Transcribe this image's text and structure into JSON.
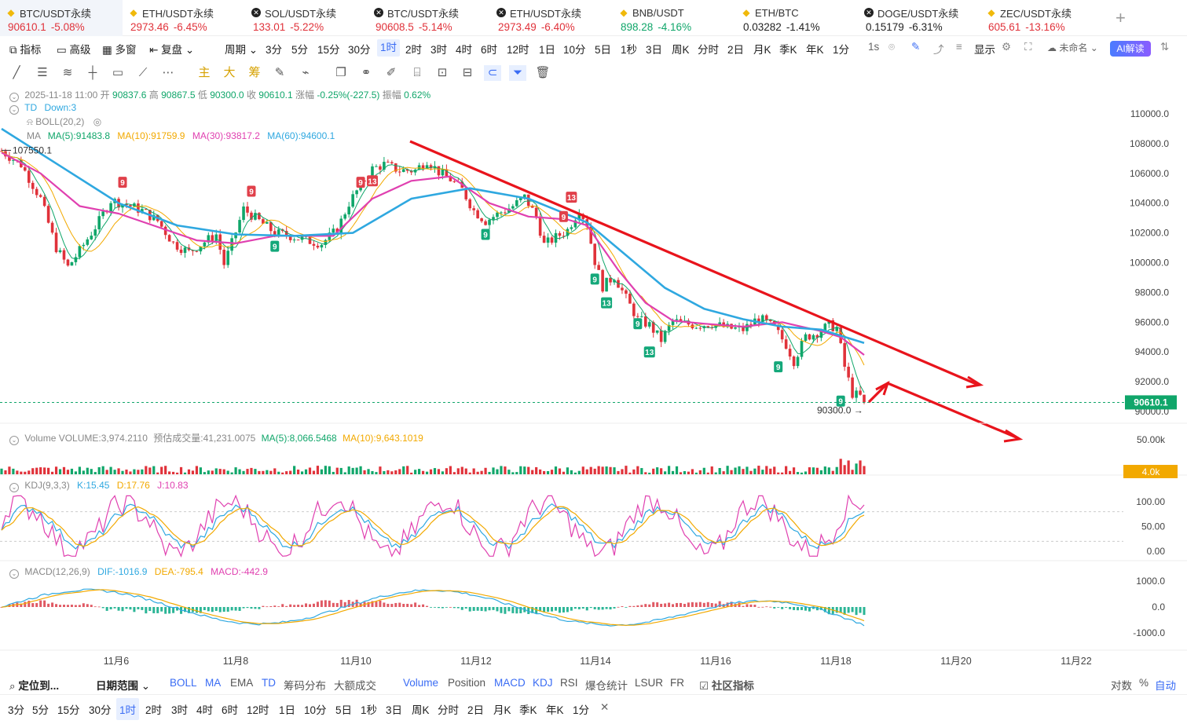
{
  "tickers": [
    {
      "name": "BTC/USDT永续",
      "icon": "binance-icon",
      "price": "90610.1",
      "change": "-5.08%",
      "active": true
    },
    {
      "name": "ETH/USDT永续",
      "icon": "binance-icon",
      "price": "2973.46",
      "change": "-6.45%"
    },
    {
      "name": "SOL/USDT永续",
      "icon": "okx-icon",
      "price": "133.01",
      "change": "-5.22%"
    },
    {
      "name": "BTC/USDT永续",
      "icon": "okx-icon",
      "price": "90608.5",
      "change": "-5.14%"
    },
    {
      "name": "ETH/USDT永续",
      "icon": "okx-icon",
      "price": "2973.49",
      "change": "-6.40%"
    },
    {
      "name": "BNB/USDT",
      "icon": "binance-icon",
      "price": "898.28",
      "change": "-4.16%"
    },
    {
      "name": "ETH/BTC",
      "icon": "binance-icon",
      "price": "0.03282",
      "change": "-1.41%"
    },
    {
      "name": "DOGE/USDT永续",
      "icon": "okx-icon",
      "price": "0.15179",
      "change": "-6.31%"
    },
    {
      "name": "ZEC/USDT永续",
      "icon": "binance-icon",
      "price": "605.61",
      "change": "-13.16%"
    }
  ],
  "toolbar": {
    "indicators": "指标",
    "advanced": "高级",
    "multi_window": "多窗",
    "replay": "复盘",
    "period": "周期",
    "intervals": [
      "3分",
      "5分",
      "15分",
      "30分",
      "1时",
      "2时",
      "3时",
      "4时",
      "6时",
      "12时",
      "1日",
      "10分",
      "5日",
      "1秒",
      "3日",
      "周K",
      "分时",
      "2日",
      "月K",
      "季K",
      "年K",
      "1分"
    ],
    "selected_interval": "1时",
    "seconds": "1s",
    "display": "显示",
    "unnamed": "未命名",
    "ai": "AI解读"
  },
  "drawbar": {
    "main": "主",
    "big": "大",
    "chips": "筹"
  },
  "legend": {
    "ohlc": {
      "date": "2025-11-18 11:00",
      "open_label": "开",
      "open": "90837.6",
      "high_label": "高",
      "high": "90867.5",
      "low_label": "低",
      "low": "90300.0",
      "close_label": "收",
      "close": "90610.1",
      "amp_label": "涨幅",
      "amp": "-0.25%(-227.5)",
      "vib_label": "振幅",
      "vib": "0.62%"
    },
    "td": {
      "name": "TD",
      "value": "Down:3"
    },
    "boll": {
      "name": "BOLL(20,2)"
    },
    "ma": {
      "name": "MA",
      "ma5": "MA(5):91483.8",
      "ma10": "MA(10):91759.9",
      "ma30": "MA(30):93817.2",
      "ma60": "MA(60):94600.1"
    },
    "volume": {
      "name": "Volume",
      "vol": "VOLUME:3,974.2110",
      "est": "预估成交量:41,231.0075",
      "ma5": "MA(5):8,066.5468",
      "ma10": "MA(10):9,643.1019"
    },
    "kdj": {
      "name": "KDJ(9,3,3)",
      "k": "K:15.45",
      "d": "D:17.76",
      "j": "J:10.83"
    },
    "macd": {
      "name": "MACD(12,26,9)",
      "dif": "DIF:-1016.9",
      "dea": "DEA:-795.4",
      "macd": "MACD:-442.9"
    }
  },
  "chart_data": {
    "type": "candlestick",
    "symbol": "BTC/USDT永续",
    "interval": "1时",
    "current_price": 90610.1,
    "high_marker": "107550.1",
    "low_marker": "90300.0",
    "ylim": [
      89500,
      111000
    ],
    "y_ticks": [
      "110000.0",
      "108000.0",
      "106000.0",
      "104000.0",
      "102000.0",
      "100000.0",
      "98000.0",
      "96000.0",
      "94000.0",
      "92000.0",
      "90000.0"
    ],
    "x_ticks": [
      "11月6",
      "11月8",
      "11月10",
      "11月12",
      "11月14",
      "11月16",
      "11月18",
      "11月20",
      "11月22"
    ],
    "close_path": [
      [
        0,
        107500
      ],
      [
        5,
        106600
      ],
      [
        10,
        104300
      ],
      [
        14,
        101000
      ],
      [
        17,
        99700
      ],
      [
        20,
        100800
      ],
      [
        25,
        102800
      ],
      [
        28,
        104200
      ],
      [
        32,
        103900
      ],
      [
        36,
        103500
      ],
      [
        40,
        102800
      ],
      [
        44,
        101300
      ],
      [
        48,
        100700
      ],
      [
        52,
        101400
      ],
      [
        55,
        101900
      ],
      [
        57,
        99900
      ],
      [
        59,
        101300
      ],
      [
        62,
        103600
      ],
      [
        66,
        102800
      ],
      [
        70,
        102000
      ],
      [
        74,
        101800
      ],
      [
        78,
        101500
      ],
      [
        82,
        101300
      ],
      [
        86,
        102200
      ],
      [
        89,
        104000
      ],
      [
        92,
        105200
      ],
      [
        95,
        106300
      ],
      [
        98,
        106600
      ],
      [
        102,
        106200
      ],
      [
        106,
        106200
      ],
      [
        109,
        106900
      ],
      [
        112,
        106100
      ],
      [
        115,
        105600
      ],
      [
        118,
        104900
      ],
      [
        121,
        103500
      ],
      [
        124,
        102800
      ],
      [
        128,
        103400
      ],
      [
        131,
        103800
      ],
      [
        134,
        104400
      ],
      [
        137,
        103100
      ],
      [
        139,
        101200
      ],
      [
        142,
        101700
      ],
      [
        145,
        102200
      ],
      [
        148,
        103600
      ],
      [
        150,
        102600
      ],
      [
        152,
        100100
      ],
      [
        154,
        98400
      ],
      [
        157,
        99100
      ],
      [
        160,
        97600
      ],
      [
        163,
        96200
      ],
      [
        166,
        95800
      ],
      [
        169,
        94800
      ],
      [
        172,
        96100
      ],
      [
        175,
        95900
      ],
      [
        178,
        95800
      ],
      [
        182,
        95900
      ],
      [
        186,
        95600
      ],
      [
        190,
        95500
      ],
      [
        194,
        96300
      ],
      [
        198,
        95600
      ],
      [
        201,
        94500
      ],
      [
        203,
        93400
      ],
      [
        206,
        95000
      ],
      [
        209,
        95300
      ],
      [
        212,
        95800
      ],
      [
        214,
        95600
      ],
      [
        216,
        93000
      ],
      [
        218,
        91200
      ],
      [
        220,
        91000
      ],
      [
        221,
        90610
      ]
    ],
    "ma_blue": [
      [
        0,
        109000
      ],
      [
        15,
        106500
      ],
      [
        30,
        104000
      ],
      [
        45,
        102500
      ],
      [
        60,
        101900
      ],
      [
        75,
        101800
      ],
      [
        90,
        102000
      ],
      [
        105,
        104300
      ],
      [
        120,
        105000
      ],
      [
        135,
        104300
      ],
      [
        150,
        102700
      ],
      [
        160,
        100500
      ],
      [
        170,
        98300
      ],
      [
        180,
        96900
      ],
      [
        190,
        96200
      ],
      [
        200,
        95700
      ],
      [
        210,
        95500
      ],
      [
        221,
        94600
      ]
    ],
    "ma_pink": [
      [
        0,
        107400
      ],
      [
        10,
        106000
      ],
      [
        20,
        103800
      ],
      [
        30,
        103300
      ],
      [
        40,
        102400
      ],
      [
        50,
        101500
      ],
      [
        60,
        101300
      ],
      [
        70,
        101800
      ],
      [
        85,
        101800
      ],
      [
        95,
        104300
      ],
      [
        105,
        105500
      ],
      [
        115,
        105800
      ],
      [
        125,
        104000
      ],
      [
        135,
        103100
      ],
      [
        145,
        102900
      ],
      [
        150,
        102500
      ],
      [
        158,
        99500
      ],
      [
        165,
        97300
      ],
      [
        172,
        96100
      ],
      [
        180,
        95900
      ],
      [
        190,
        95700
      ],
      [
        200,
        96000
      ],
      [
        210,
        95400
      ],
      [
        215,
        95000
      ],
      [
        221,
        93800
      ]
    ],
    "td_labels": [
      {
        "t": 31,
        "p": 105400,
        "label": "9",
        "kind": "sell"
      },
      {
        "t": 64,
        "p": 104800,
        "label": "9",
        "kind": "sell"
      },
      {
        "t": 92,
        "p": 105400,
        "label": "9",
        "kind": "sell"
      },
      {
        "t": 95,
        "p": 105500,
        "label": "13",
        "kind": "sell"
      },
      {
        "t": 146,
        "p": 104400,
        "label": "13",
        "kind": "sell"
      },
      {
        "t": 144,
        "p": 103100,
        "label": "9",
        "kind": "sell"
      },
      {
        "t": 70,
        "p": 101100,
        "label": "9",
        "kind": "buy"
      },
      {
        "t": 124,
        "p": 101900,
        "label": "9",
        "kind": "buy"
      },
      {
        "t": 152,
        "p": 98900,
        "label": "9",
        "kind": "buy"
      },
      {
        "t": 155,
        "p": 97300,
        "label": "13",
        "kind": "buy"
      },
      {
        "t": 163,
        "p": 95900,
        "label": "9",
        "kind": "buy"
      },
      {
        "t": 166,
        "p": 94000,
        "label": "13",
        "kind": "buy"
      },
      {
        "t": 199,
        "p": 93000,
        "label": "9",
        "kind": "buy"
      },
      {
        "t": 215,
        "p": 90700,
        "label": "9",
        "kind": "buy"
      }
    ],
    "volume_axis": [
      "50.00k",
      "4.0k"
    ],
    "kdj_axis": [
      "100.00",
      "50.00",
      "0.00"
    ],
    "macd_axis": [
      "1000.0",
      "0.0",
      "-1000.0"
    ]
  },
  "annotations": {
    "trendline": "red descending trendline",
    "arrows": "red projected arrows"
  },
  "indicator_bar": {
    "locate": "定位到...",
    "date_range": "日期范围",
    "items": [
      "BOLL",
      "MA",
      "EMA",
      "TD",
      "筹码分布",
      "大额成交",
      "Volume",
      "Position",
      "MACD",
      "KDJ",
      "RSI",
      "爆仓统计",
      "LSUR",
      "FR"
    ],
    "community": "社区指标",
    "log": "对数",
    "percent": "%",
    "auto": "自动"
  },
  "period_bar": {
    "items": [
      "3分",
      "5分",
      "15分",
      "30分",
      "1时",
      "2时",
      "3时",
      "4时",
      "6时",
      "12时",
      "1日",
      "10分",
      "5日",
      "1秒",
      "3日",
      "周K",
      "分时",
      "2日",
      "月K",
      "季K",
      "年K",
      "1分"
    ],
    "selected": "1时"
  },
  "colors": {
    "up": "#10a66a",
    "down": "#e0323a",
    "ma_blue": "#2fa8e0",
    "ma_pink": "#e040b0",
    "ma_orange": "#f2a900",
    "accent": "#3a6cf4"
  }
}
